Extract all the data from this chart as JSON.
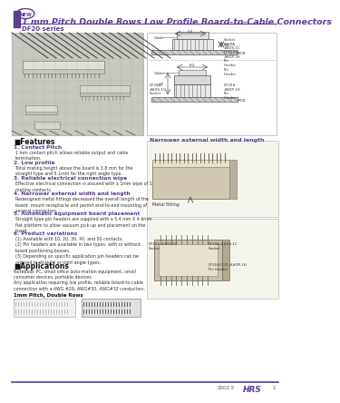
{
  "title": "1 mm Pitch Double Rows Low Profile Board-to-Cable Connectors",
  "series_name": "DF20 series",
  "bg_color": "#ffffff",
  "header_bar_color": "#5c3d8f",
  "header_line_color": "#5c3d8f",
  "title_color": "#5c3d8f",
  "series_color": "#5c3d8f",
  "feature_header_color": "#222222",
  "feature_title_color": "#5c3d8f",
  "feature_text_color": "#333333",
  "footer_line_color": "#5c3d8f",
  "footer_text_color": "#555555",
  "footer_brand_color": "#5c3d8f",
  "new_badge_color": "#5c3d8f",
  "photo_bg": "#c8c8c0",
  "diag_bg": "#f0f0f0",
  "narrower_label": "Narrower external width and length",
  "metal_fitting_label": "Metal fitting",
  "footer_date": "2002.5",
  "footer_brand": "HRS",
  "footer_page": "1",
  "feat_titles": [
    "1. Contact Pitch",
    "2. Low profile",
    "3. Reliable electrical connection wipe",
    "4. Narrower external width and length",
    "5. Automatic equipment board placement",
    "6. Product variations"
  ],
  "feat_texts": [
    "1 mm contact pitch allows reliable output and cable\ntermination.",
    "Total mating height above the board is 3.8 mm for the\nstraight type and 5.1mm for the right angle type.",
    "Effective electrical connection is assured with a 1mm wipe of 1\nmating contacts.",
    "Redesigned metal fittings decreased the overall length of the\nboard- mount receptacle and permit end-to-end mounting of\nseveral connectors.",
    "Straight type pin headers are supplied with a 5.4 mm X 4.6mm\nflat platform to allow vacuum pick-up and placement on the\nboard.",
    "(1) Available with 10, 20, 30, 40, and 50 contacts.\n(2) Pin headers are available in two types: with or without\nboard positioning bosses.\n(3) Depending on specific application pin headers can be\nordered in straight or right angle types."
  ],
  "app_header": "Applications",
  "app_text": "Notebook PC, small office auto-mation equipment, small\nconsumer devices, portable devices.\nAny application requiring low profile, reliable board-to-cable\nconnection with a AWG #28, AWG#30, AWG#32 conductors.",
  "app_sub": "1mm Pitch, Double Rows"
}
